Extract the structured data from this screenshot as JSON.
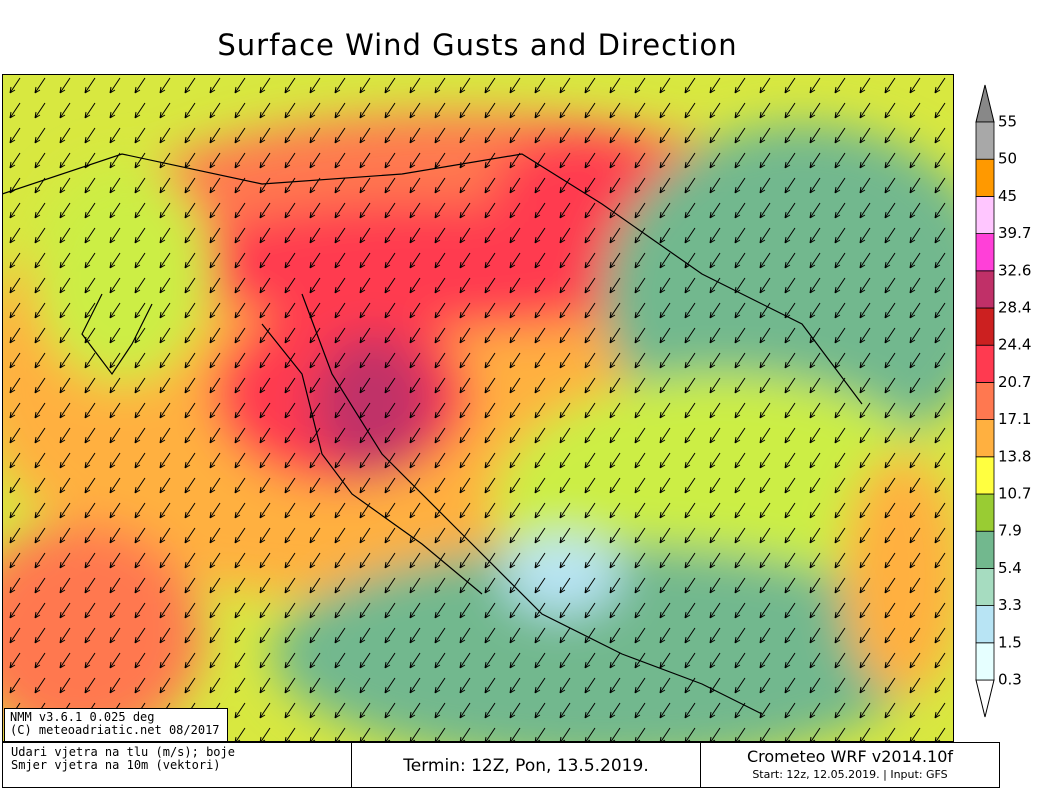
{
  "title": "Surface Wind Gusts and Direction",
  "legend": {
    "levels": [
      0.3,
      1.5,
      3.3,
      5.4,
      7.9,
      10.7,
      13.8,
      17.1,
      20.7,
      24.4,
      28.4,
      32.6,
      39.7,
      45,
      50,
      55
    ],
    "colors": [
      "#e6ffff",
      "#b8e4f4",
      "#a6dcc0",
      "#72b88e",
      "#99cc33",
      "#ffff40",
      "#ffb040",
      "#ff7850",
      "#ff3a50",
      "#cc2020",
      "#c03068",
      "#ff40d8",
      "#ffc6ff",
      "#ff9900",
      "#a8a8a8"
    ]
  },
  "model_info": [
    "NMM v3.6.1 0.025 deg",
    "(C) meteoadriatic.net 08/2017"
  ],
  "caption": [
    "Udari vjetra na tlu (m/s); boje",
    "Smjer vjetra na 10m (vektori)"
  ],
  "run_time": "Termin: 12Z, Pon, 13.5.2019.",
  "model": {
    "name": "Crometeo WRF v2014.10f",
    "start": "Start: 12z, 12.05.2019. | Input: GFS"
  }
}
